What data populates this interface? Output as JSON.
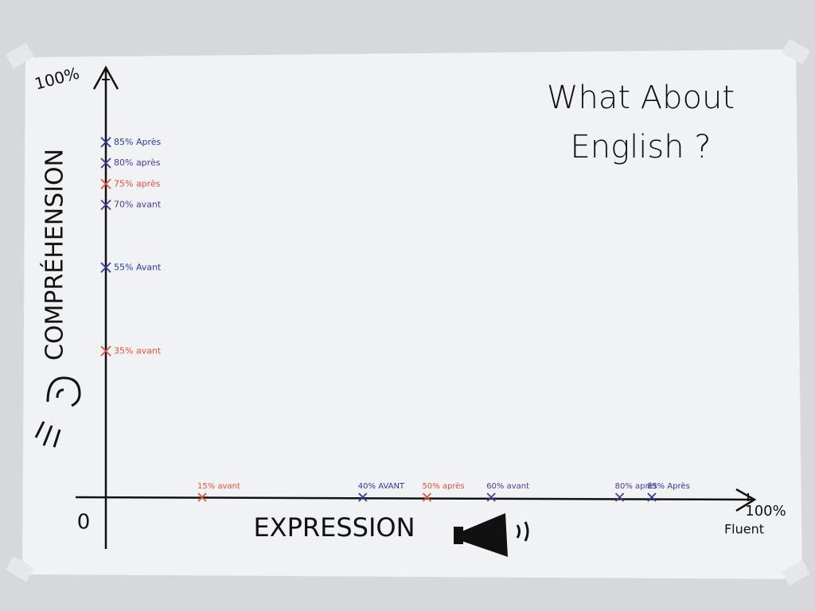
{
  "chart_data": {
    "type": "axis-marks",
    "title": "What About English ?",
    "y_axis_label": "COMPRÉHENSION",
    "x_axis_label": "EXPRESSION",
    "x_end_label": "Fluent",
    "xlim": [
      0,
      100
    ],
    "ylim": [
      0,
      100
    ],
    "xticks": [
      0,
      {
        "value": 100,
        "label": "100%"
      }
    ],
    "yticks": [
      {
        "value": 100,
        "label": "100%"
      }
    ],
    "y_points": {
      "values": [
        85,
        80,
        75,
        70,
        55,
        35
      ],
      "value_labels": [
        "85% Après",
        "80% après",
        "75% après",
        "70% avant",
        "55% Avant",
        "35% avant"
      ],
      "colors": [
        "#2b3a9e",
        "#4a3a9a",
        "#e0533c",
        "#4a3a9a",
        "#2b3a9e",
        "#e0533c"
      ]
    },
    "x_points": {
      "values": [
        15,
        40,
        50,
        60,
        80,
        85
      ],
      "value_labels": [
        "15% avant",
        "40% AVANT",
        "50% après",
        "60% avant",
        "80% après",
        "85% Après"
      ],
      "colors": [
        "#e0533c",
        "#2b3a9e",
        "#e0533c",
        "#4a3a9a",
        "#4a3a9a",
        "#2b3a9e"
      ]
    }
  }
}
